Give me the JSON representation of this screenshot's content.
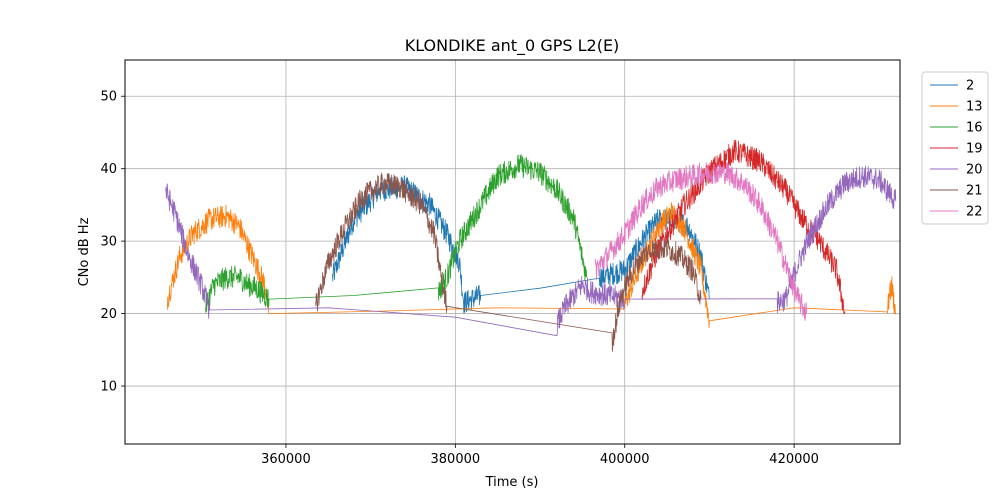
{
  "chart_data": {
    "type": "line",
    "title": "KLONDIKE ant_0 GPS L2(E)",
    "xlabel": "Time (s)",
    "ylabel": "CNo dB Hz",
    "xlim": [
      341000,
      432500
    ],
    "ylim": [
      2,
      55
    ],
    "xticks": [
      360000,
      380000,
      400000,
      420000
    ],
    "yticks": [
      10,
      20,
      30,
      40,
      50
    ],
    "grid": true,
    "legend_position": "outside-right",
    "series": [
      {
        "name": "2",
        "color": "#1f77b4",
        "x": [
          365500,
          368000,
          371000,
          374000,
          377000,
          379000,
          380500,
          381000,
          383000,
          390000,
          397000,
          400000,
          402000,
          404000,
          406000,
          407500,
          409000,
          410000
        ],
        "y": [
          25,
          33,
          37,
          37.5,
          35,
          31,
          27,
          21.5,
          22.5,
          23.5,
          25,
          26,
          30,
          33,
          33,
          32,
          28,
          22
        ]
      },
      {
        "name": "13",
        "color": "#ff7f0e",
        "x": [
          346000,
          347500,
          349000,
          351000,
          353000,
          354500,
          356000,
          357500,
          358000,
          370000,
          385000,
          400000,
          402000,
          404000,
          405500,
          407000,
          409000,
          410000,
          420000,
          431000,
          431500,
          432000
        ],
        "y": [
          22,
          28,
          31,
          33,
          33.5,
          32,
          28,
          24,
          20,
          20.3,
          20.8,
          21.3,
          27,
          32,
          34,
          32,
          26,
          19,
          20.8,
          20.5,
          24,
          20
        ]
      },
      {
        "name": "16",
        "color": "#2ca02c",
        "x": [
          350500,
          351500,
          353000,
          354500,
          355500,
          356500,
          358000,
          368000,
          378000,
          379000,
          380500,
          383000,
          385000,
          387500,
          390000,
          392000,
          394000,
          395500
        ],
        "y": [
          21,
          24,
          25,
          25,
          24,
          23.5,
          22,
          22.5,
          23,
          25,
          30,
          35,
          39,
          40.5,
          39.5,
          37,
          33,
          25
        ]
      },
      {
        "name": "19",
        "color": "#d62728",
        "x": [
          402000,
          404000,
          407000,
          410000,
          413000,
          416000,
          419000,
          421000,
          423000,
          425000,
          426000
        ],
        "y": [
          23,
          29,
          35,
          39.5,
          42.5,
          41,
          37,
          33,
          30,
          26,
          20
        ]
      },
      {
        "name": "20",
        "color": "#9467bd",
        "x": [
          345800,
          347000,
          348500,
          350000,
          351000,
          365000,
          380000,
          392000,
          393000,
          395000,
          396000,
          400000,
          418000,
          419000,
          420500,
          422000,
          424000,
          426000,
          428000,
          430000,
          432000
        ],
        "y": [
          37,
          33.5,
          28,
          24,
          20.5,
          20.8,
          19.5,
          18.5,
          21,
          24,
          23,
          22,
          21.5,
          22,
          27,
          31,
          35,
          38,
          39,
          38.5,
          35.5
        ]
      },
      {
        "name": "21",
        "color": "#8c564b",
        "x": [
          363500,
          365000,
          367000,
          369000,
          371500,
          373500,
          376000,
          377500,
          378500,
          379000,
          398500,
          399500,
          400500,
          402000,
          403500,
          405000,
          406500,
          408000,
          409000
        ],
        "y": [
          21,
          27,
          32,
          36,
          38,
          37.5,
          35,
          31,
          24,
          21,
          16,
          22,
          25,
          28,
          29,
          29,
          28,
          26,
          22
        ]
      },
      {
        "name": "22",
        "color": "#e377c2",
        "x": [
          396500,
          398000,
          400000,
          402000,
          404000,
          406000,
          408000,
          410000,
          412000,
          414000,
          416000,
          418000,
          419500,
          420500,
          421500
        ],
        "y": [
          26,
          28,
          31,
          35,
          37.5,
          38.5,
          39,
          39.5,
          39.5,
          38,
          35,
          30,
          25,
          22,
          20
        ]
      }
    ]
  }
}
